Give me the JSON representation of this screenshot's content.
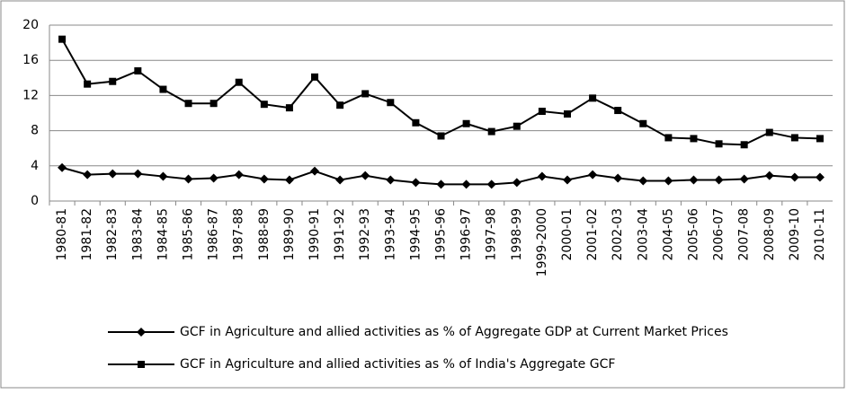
{
  "chart_data": {
    "type": "line",
    "categories": [
      "1980-81",
      "1981-82",
      "1982-83",
      "1983-84",
      "1984-85",
      "1985-86",
      "1986-87",
      "1987-88",
      "1988-89",
      "1989-90",
      "1990-91",
      "1991-92",
      "1992-93",
      "1993-94",
      "1994-95",
      "1995-96",
      "1996-97",
      "1997-98",
      "1998-99",
      "1999-2000",
      "2000-01",
      "2001-02",
      "2002-03",
      "2003-04",
      "2004-05",
      "2005-06",
      "2006-07",
      "2007-08",
      "2008-09",
      "2009-10",
      "2010-11"
    ],
    "series": [
      {
        "name": "GCF in Agriculture and allied activities as % of Aggregate GDP at Current Market Prices",
        "color": "#000000",
        "marker": "diamond",
        "values": [
          3.8,
          3.0,
          3.1,
          3.1,
          2.8,
          2.5,
          2.6,
          3.0,
          2.5,
          2.4,
          3.4,
          2.4,
          2.9,
          2.4,
          2.1,
          1.9,
          1.9,
          1.9,
          2.1,
          2.8,
          2.4,
          3.0,
          2.6,
          2.3,
          2.3,
          2.4,
          2.4,
          2.5,
          2.9,
          2.7,
          2.7
        ]
      },
      {
        "name": "GCF in Agriculture and allied activities as % of India's Aggregate GCF",
        "color": "#000000",
        "marker": "square",
        "values": [
          18.4,
          13.3,
          13.6,
          14.8,
          12.7,
          11.1,
          11.1,
          13.5,
          11.0,
          10.6,
          14.1,
          10.9,
          12.2,
          11.2,
          8.9,
          7.4,
          8.8,
          7.9,
          8.5,
          10.2,
          9.9,
          11.7,
          10.3,
          8.8,
          7.2,
          7.1,
          6.5,
          6.4,
          7.8,
          7.2,
          7.1
        ]
      }
    ],
    "ylim": [
      0,
      20
    ],
    "yticks": [
      0,
      4,
      8,
      12,
      16,
      20
    ],
    "grid": true,
    "legend": "bottom"
  }
}
